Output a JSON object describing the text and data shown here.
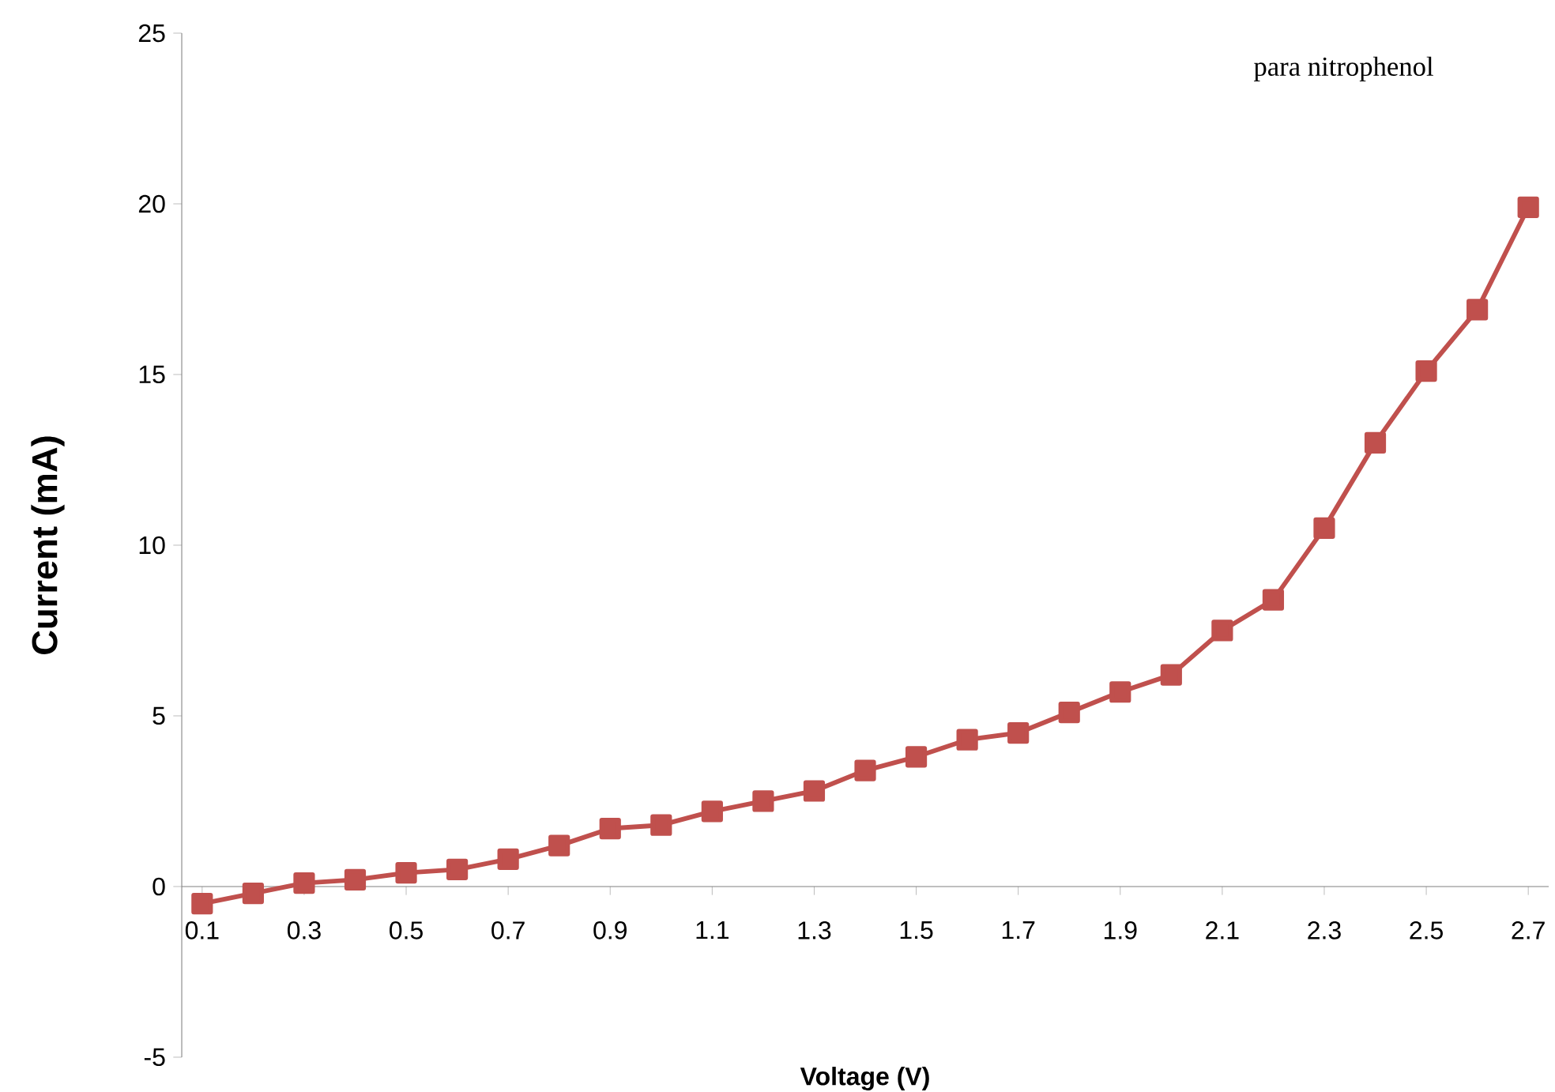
{
  "chart_data": {
    "type": "line",
    "xlabel": "Voltage (V)",
    "ylabel": "Current (mA)",
    "annotations": [
      "para nitrophenol"
    ],
    "x": [
      0.1,
      0.2,
      0.3,
      0.4,
      0.5,
      0.6,
      0.7,
      0.8,
      0.9,
      1.0,
      1.1,
      1.2,
      1.3,
      1.4,
      1.5,
      1.6,
      1.7,
      1.8,
      1.9,
      2.0,
      2.1,
      2.2,
      2.3,
      2.4,
      2.5,
      2.6,
      2.7
    ],
    "series": [
      {
        "color": "#c0504d",
        "values": [
          -0.5,
          -0.2,
          0.1,
          0.2,
          0.4,
          0.5,
          0.8,
          1.2,
          1.7,
          1.8,
          2.2,
          2.5,
          2.8,
          3.4,
          3.8,
          4.3,
          4.5,
          5.1,
          5.7,
          6.2,
          7.5,
          8.4,
          10.5,
          13.0,
          15.1,
          16.9,
          19.9
        ]
      }
    ],
    "xlim": [
      0.06,
      2.74
    ],
    "ylim": [
      -5,
      25
    ],
    "xticks": [
      0.1,
      0.3,
      0.5,
      0.7,
      0.9,
      1.1,
      1.3,
      1.5,
      1.7,
      1.9,
      2.1,
      2.3,
      2.5,
      2.7
    ],
    "yticks": [
      -5,
      0,
      5,
      10,
      15,
      20,
      25
    ],
    "grid": false,
    "marker": "square",
    "line_style": "solid"
  }
}
